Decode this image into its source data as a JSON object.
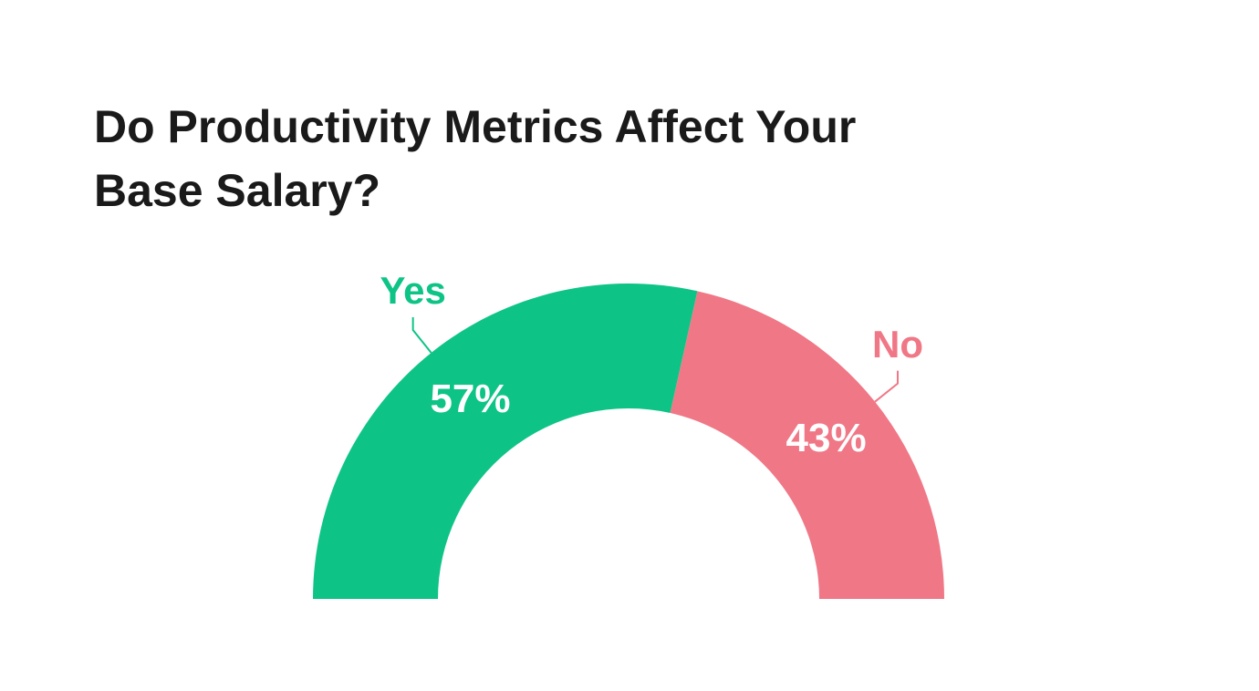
{
  "chart_data": {
    "type": "pie",
    "half": true,
    "title": "Do Productivity Metrics Affect Your Base Salary?",
    "categories": [
      "Yes",
      "No"
    ],
    "values": [
      57,
      43
    ],
    "value_labels": [
      "57%",
      "43%"
    ],
    "colors": [
      "#0dc486",
      "#f07786"
    ]
  }
}
